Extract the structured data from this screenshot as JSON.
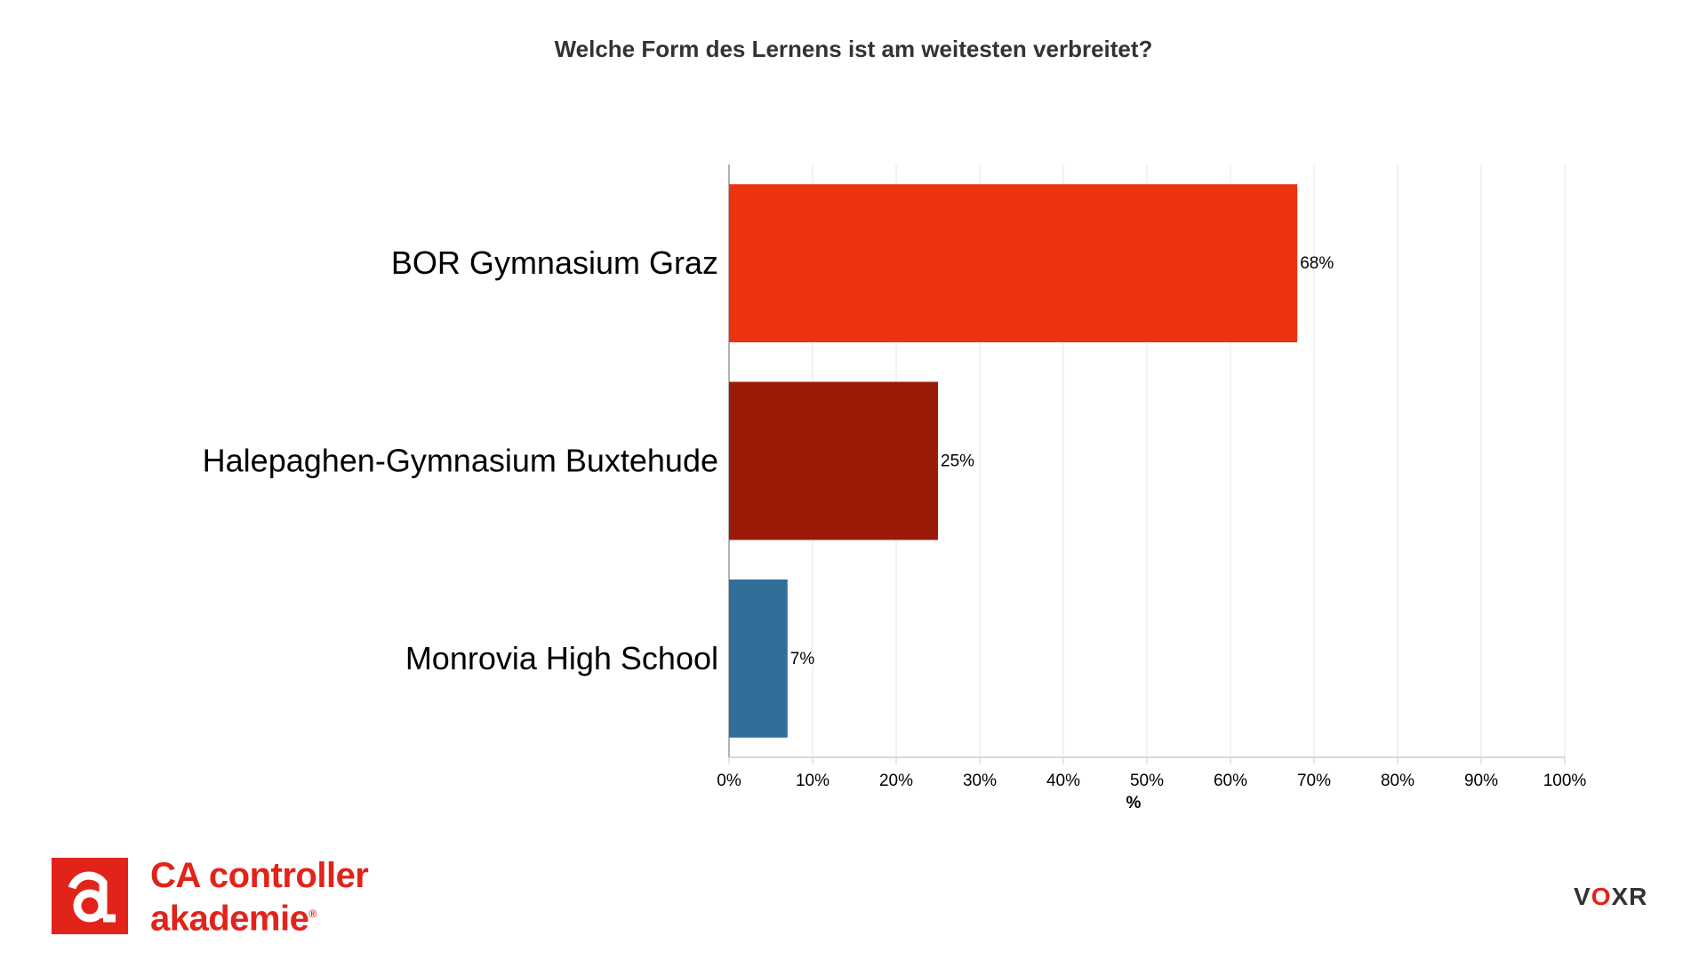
{
  "title": "Welche Form des Lernens ist am weitesten verbreitet?",
  "chart_data": {
    "type": "bar",
    "orientation": "horizontal",
    "title": "Welche Form des Lernens ist am weitesten verbreitet?",
    "xlabel": "%",
    "ylabel": "",
    "xlim": [
      0,
      100
    ],
    "x_ticks": [
      "0%",
      "10%",
      "20%",
      "30%",
      "40%",
      "50%",
      "60%",
      "70%",
      "80%",
      "90%",
      "100%"
    ],
    "grid": true,
    "categories": [
      "BOR Gymnasium Graz",
      "Halepaghen-Gymnasium Buxtehude",
      "Monrovia High School"
    ],
    "values": [
      68,
      25,
      7
    ],
    "data_labels": [
      "68%",
      "25%",
      "7%"
    ],
    "colors": [
      "#ec3310",
      "#9a1b08",
      "#326e9a"
    ]
  },
  "branding": {
    "left_logo_line1": "CA controller",
    "left_logo_line2": "akademie",
    "left_logo_mark": "®",
    "left_logo_icon": "ca-logo-icon",
    "right_logo_prefix": "V",
    "right_logo_o": "O",
    "right_logo_suffix": "XR",
    "brand_red": "#e2231a"
  }
}
